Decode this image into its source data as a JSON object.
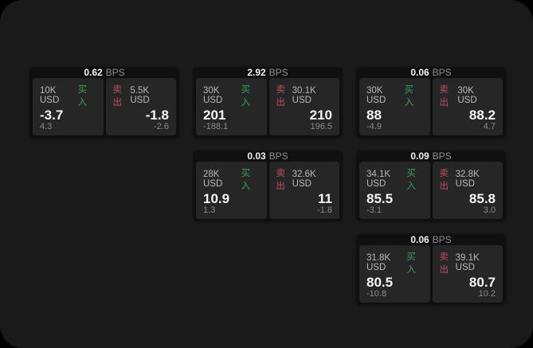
{
  "labels": {
    "bps_unit": "BPS",
    "buy": "买入",
    "sell": "卖出"
  },
  "colors": {
    "buy_green": "#36a35c",
    "sell_red": "#c04f5e",
    "surface": "#1a1a1a",
    "card": "#101010",
    "panel": "#262626"
  },
  "cards": [
    {
      "bps": "0.62",
      "buy": {
        "amount": "10K USD",
        "price": "-3.7",
        "sub": "4.3"
      },
      "sell": {
        "amount": "5.5K USD",
        "price": "-1.8",
        "sub": "-2.6"
      }
    },
    {
      "bps": "2.92",
      "buy": {
        "amount": "30K USD",
        "price": "201",
        "sub": "-188.1"
      },
      "sell": {
        "amount": "30.1K USD",
        "price": "210",
        "sub": "196.5"
      }
    },
    {
      "bps": "0.06",
      "buy": {
        "amount": "30K USD",
        "price": "88",
        "sub": "-4.9"
      },
      "sell": {
        "amount": "30K USD",
        "price": "88.2",
        "sub": "4.7"
      }
    },
    {
      "bps": "0.03",
      "buy": {
        "amount": "28K USD",
        "price": "10.9",
        "sub": "1.3"
      },
      "sell": {
        "amount": "32.6K USD",
        "price": "11",
        "sub": "-1.8"
      }
    },
    {
      "bps": "0.09",
      "buy": {
        "amount": "34.1K USD",
        "price": "85.5",
        "sub": "-3.1"
      },
      "sell": {
        "amount": "32.8K USD",
        "price": "85.8",
        "sub": "3.0"
      }
    },
    {
      "bps": "0.06",
      "buy": {
        "amount": "31.8K USD",
        "price": "80.5",
        "sub": "-10.8"
      },
      "sell": {
        "amount": "39.1K USD",
        "price": "80.7",
        "sub": "10.2"
      }
    }
  ]
}
